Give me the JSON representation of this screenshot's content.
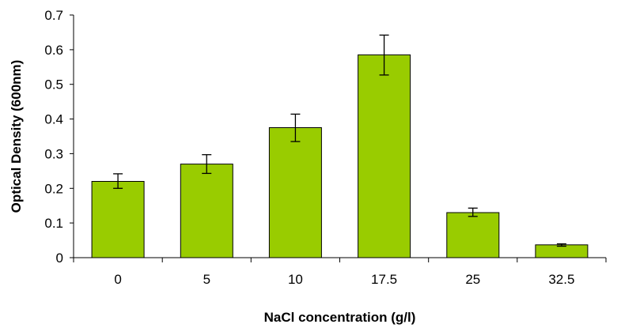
{
  "chart_data": {
    "type": "bar",
    "title": "",
    "xlabel": "NaCl concentration (g/l)",
    "ylabel": "Optical Density (600nm)",
    "categories": [
      "0",
      "5",
      "10",
      "17.5",
      "25",
      "32.5"
    ],
    "values": [
      0.22,
      0.27,
      0.375,
      0.585,
      0.13,
      0.037
    ],
    "error_low": [
      0.2,
      0.243,
      0.335,
      0.527,
      0.119,
      0.033
    ],
    "error_high": [
      0.242,
      0.297,
      0.414,
      0.642,
      0.143,
      0.04
    ],
    "ylim": [
      0,
      0.7
    ],
    "y_ticks": [
      "0",
      "0.1",
      "0.2",
      "0.3",
      "0.4",
      "0.5",
      "0.6",
      "0.7"
    ],
    "grid": false,
    "legend": "none",
    "colors": {
      "bar_fill": "#99cc00",
      "bar_stroke": "#000000",
      "axis": "#000000"
    }
  }
}
